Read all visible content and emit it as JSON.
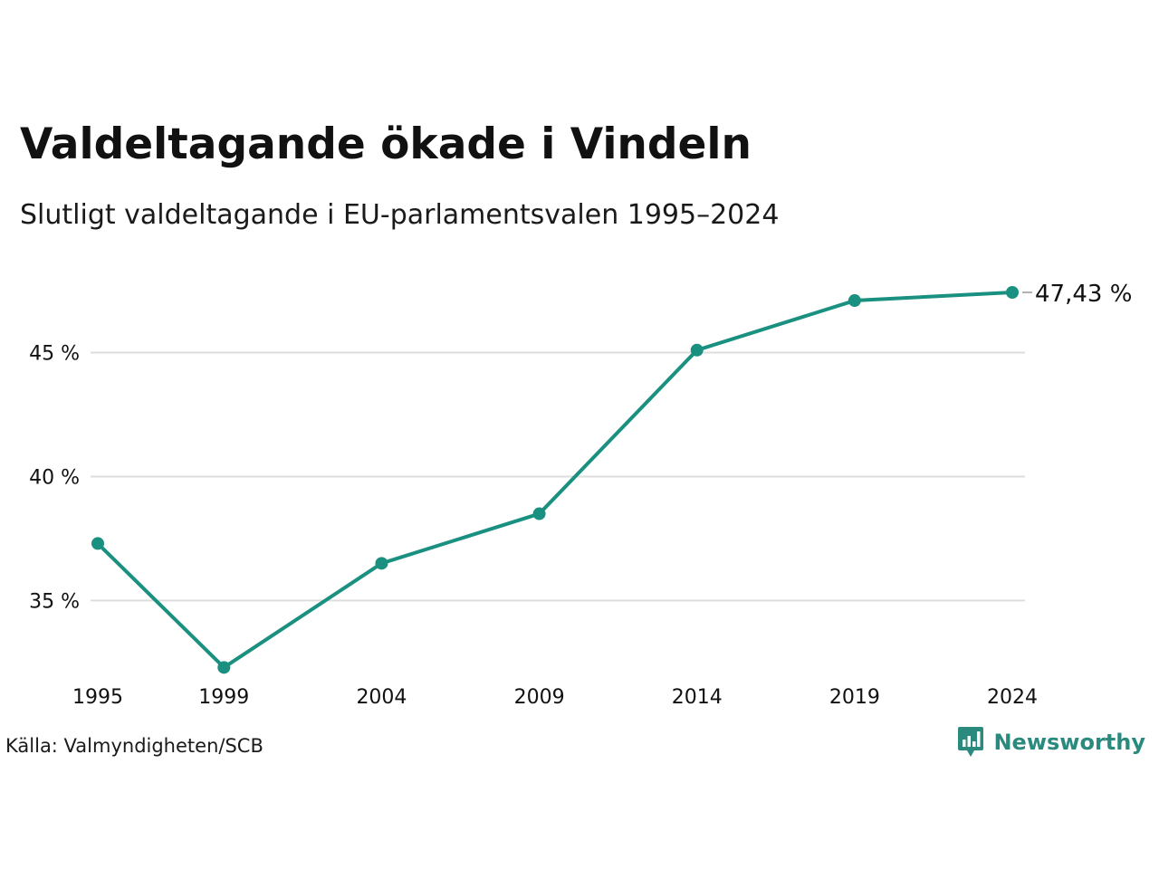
{
  "title": "Valdeltagande ökade i Vindeln",
  "subtitle": "Slutligt valdeltagande i EU-parlamentsvalen 1995–2024",
  "source": "Källa: Valmyndigheten/SCB",
  "brand": {
    "name": "Newsworthy",
    "icon": "newsworthy-logo-icon",
    "color": "#2a8a7e"
  },
  "colors": {
    "line": "#1a9080",
    "grid": "#dddddd",
    "text": "#111111"
  },
  "chart_data": {
    "type": "line",
    "title": "Valdeltagande ökade i Vindeln",
    "subtitle": "Slutligt valdeltagande i EU-parlamentsvalen 1995–2024",
    "xlabel": "",
    "ylabel": "",
    "x": [
      1995,
      1999,
      2004,
      2009,
      2014,
      2019,
      2024
    ],
    "series": [
      {
        "values": [
          37.3,
          32.3,
          36.5,
          38.5,
          45.1,
          47.1,
          47.43
        ]
      }
    ],
    "ylim": [
      31.4,
      49.0
    ],
    "yticks": [
      35,
      40,
      45
    ],
    "ytick_labels": [
      "35 %",
      "40 %",
      "45 %"
    ],
    "xtick_labels": [
      "1995",
      "1999",
      "2004",
      "2009",
      "2014",
      "2019",
      "2024"
    ],
    "end_label": "47,43 %",
    "grid": true
  }
}
